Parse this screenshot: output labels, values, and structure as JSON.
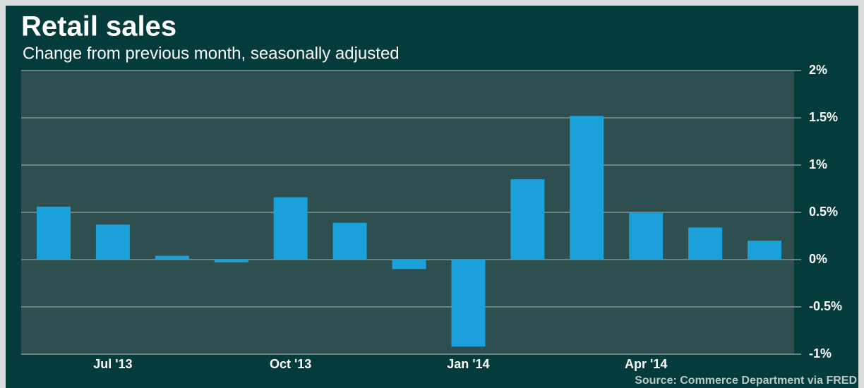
{
  "chart_data": {
    "type": "bar",
    "title": "Retail sales",
    "subtitle": "Change from previous month, seasonally adjusted",
    "source": "Source: Commerce Department via FRED",
    "categories": [
      null,
      "Jul '13",
      null,
      null,
      "Oct '13",
      null,
      null,
      "Jan '14",
      null,
      null,
      "Apr '14",
      null,
      null
    ],
    "values": [
      0.56,
      0.37,
      0.04,
      -0.03,
      0.66,
      0.39,
      -0.1,
      -0.92,
      0.85,
      1.52,
      0.5,
      0.34,
      0.2
    ],
    "color": "#1ba1d9",
    "ylim": [
      -1,
      2
    ],
    "yticks": [
      {
        "value": -1,
        "label": "-1%"
      },
      {
        "value": -0.5,
        "label": "-0.5%"
      },
      {
        "value": 0,
        "label": "0%"
      },
      {
        "value": 0.5,
        "label": "0.5%"
      },
      {
        "value": 1,
        "label": "1%"
      },
      {
        "value": 1.5,
        "label": "1.5%"
      },
      {
        "value": 2,
        "label": "2%"
      }
    ],
    "grid": true
  }
}
